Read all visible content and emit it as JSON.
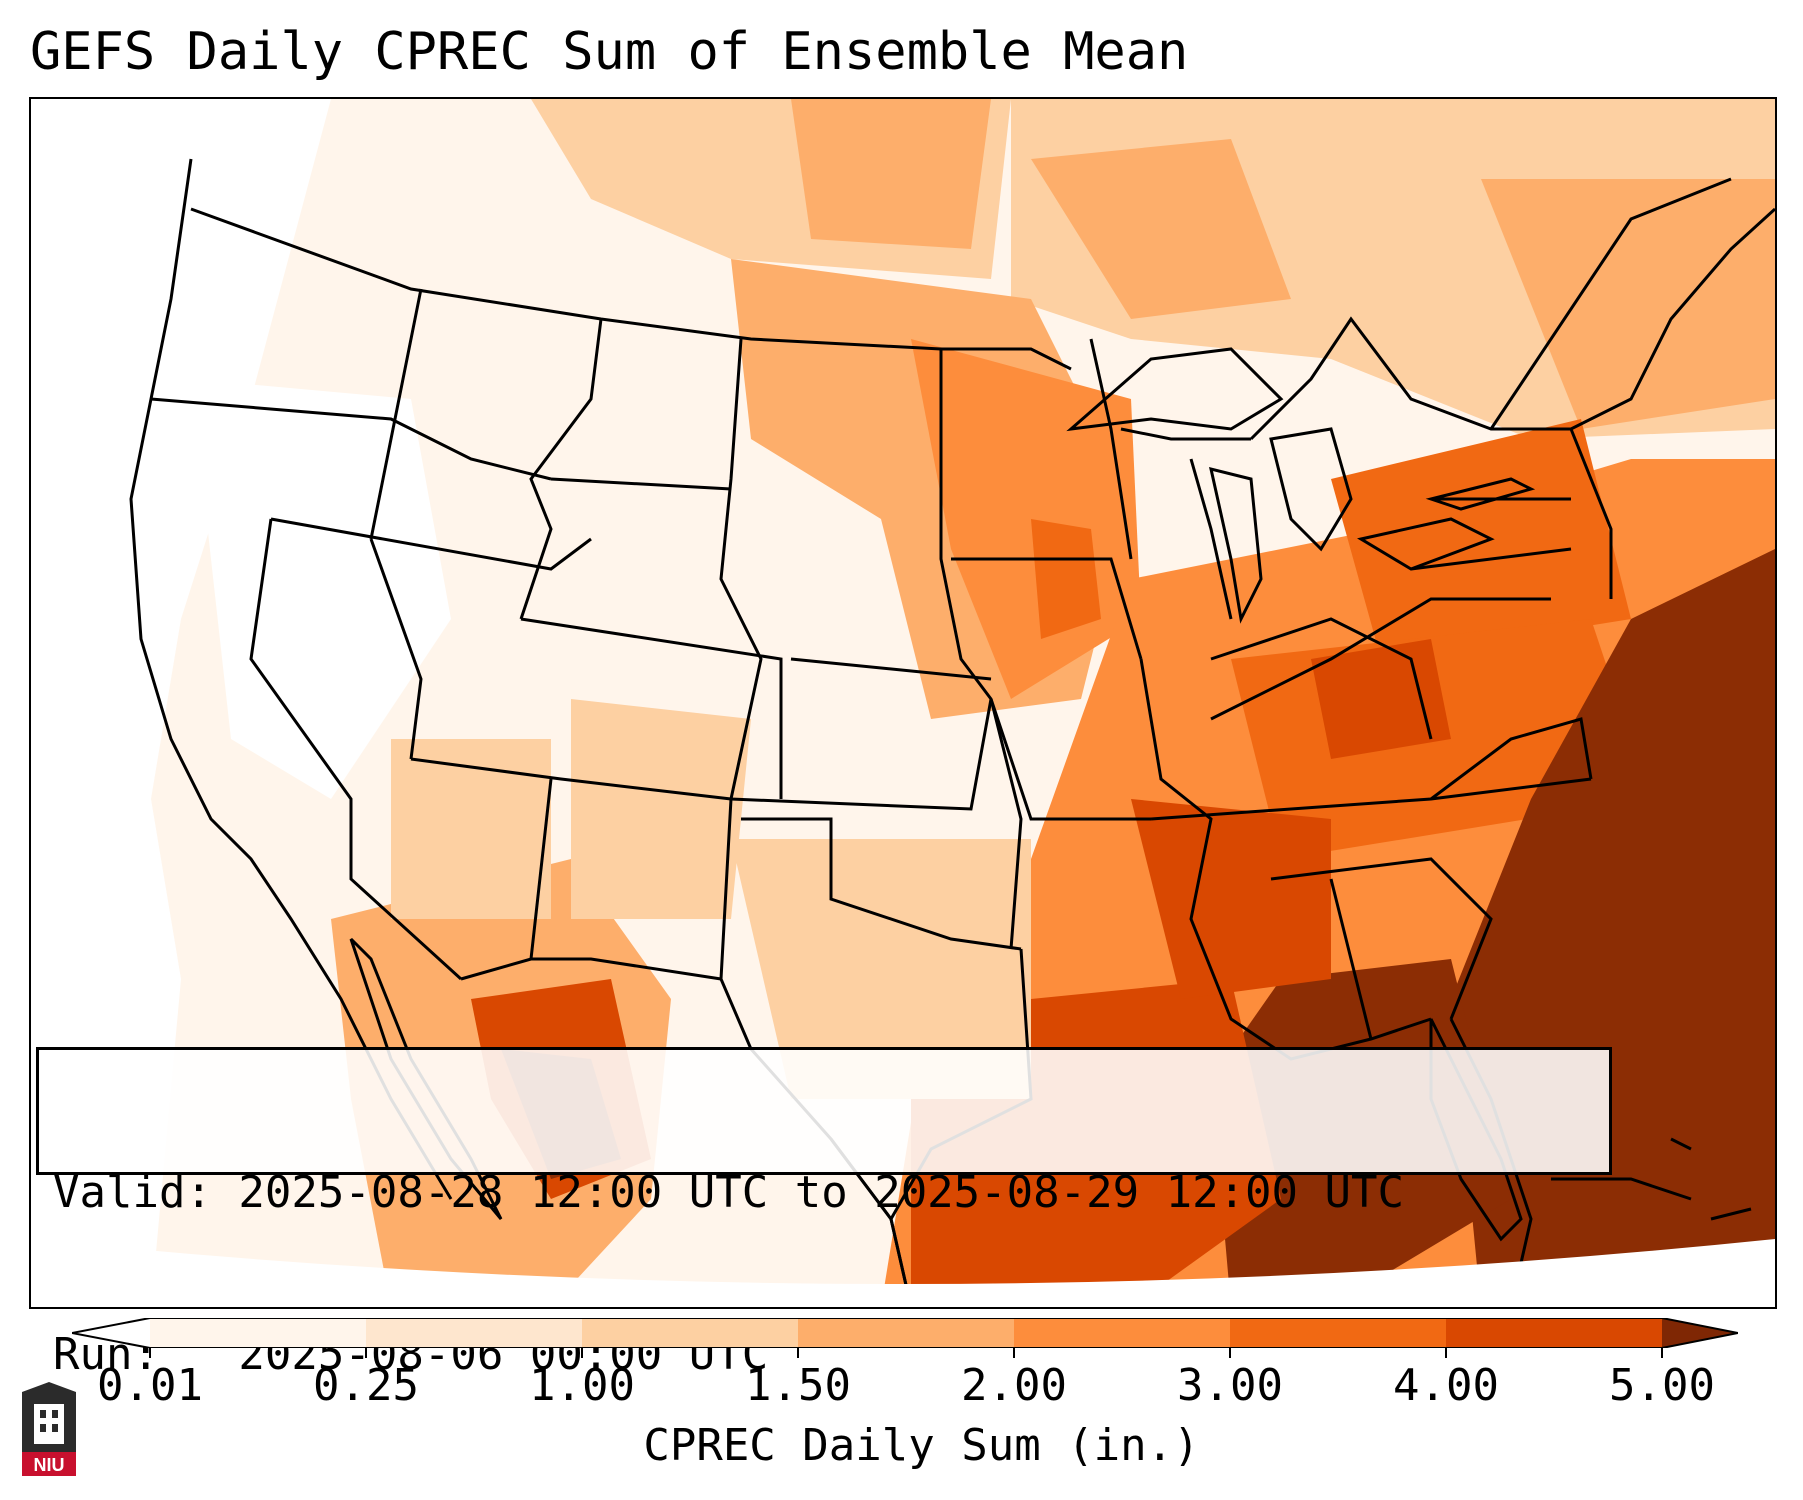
{
  "title": "GEFS Daily CPREC Sum of Ensemble Mean",
  "info": {
    "valid_line": "Valid: 2025-08-28 12:00 UTC to 2025-08-29 12:00 UTC",
    "run_line": "Run:   2025-08-06 00:00 UTC"
  },
  "colorbar": {
    "label": "CPREC Daily Sum (in.)",
    "ticks": [
      "0.01",
      "0.25",
      "1.00",
      "1.50",
      "2.00",
      "3.00",
      "4.00",
      "5.00"
    ],
    "colors": [
      "#fff5eb",
      "#fee6ce",
      "#fdd0a2",
      "#fdae6b",
      "#fd8d3c",
      "#f16913",
      "#d94801",
      "#8c2d04"
    ],
    "under_color": "#ffffff",
    "over_color": "#7f2704"
  },
  "logo": {
    "text": "NIU",
    "color": "#c8102e"
  }
}
